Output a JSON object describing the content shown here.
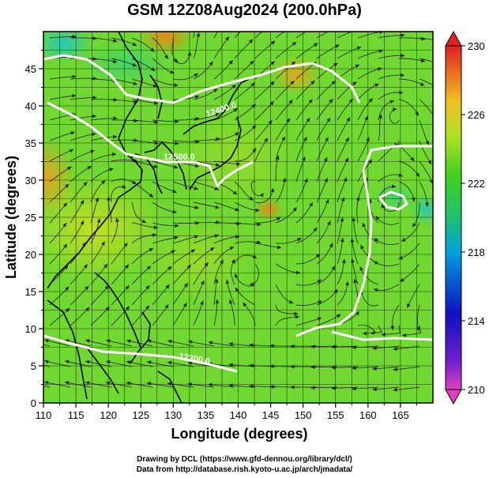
{
  "title": "GSM 12Z08Aug2024 (200.0hPa)",
  "credits": {
    "line1": "Drawing by DCL (https://www.gfd-dennou.org/library/dcl/)",
    "line2": "Data from http://database.rish.kyoto-u.ac.jp/arch/jmadata/"
  },
  "chart_data": {
    "type": "heatmap",
    "title": "GSM 12Z08Aug2024 (200.0hPa)",
    "xlabel": "Longitude (degrees)",
    "ylabel": "Latitude  (degrees)",
    "xlim": [
      110,
      170
    ],
    "ylim": [
      0,
      50
    ],
    "x_ticks": [
      110,
      115,
      120,
      125,
      130,
      135,
      140,
      145,
      150,
      155,
      160,
      165
    ],
    "y_ticks": [
      0,
      5,
      10,
      15,
      20,
      25,
      30,
      35,
      40,
      45
    ],
    "grid": true,
    "colorbar": {
      "range": [
        210,
        230
      ],
      "ticks": [
        230,
        226,
        222,
        218,
        214,
        210
      ],
      "colors": [
        "#e040c0",
        "#1010c0",
        "#00a0e0",
        "#20c060",
        "#40d020",
        "#e0d020",
        "#f08020",
        "#e02020"
      ]
    },
    "contours": [
      {
        "label": "12500.0",
        "value": 12500
      },
      {
        "label": "12400.0",
        "value": 12400
      },
      {
        "label": "12300.0",
        "value": 12300
      }
    ],
    "background": "streamlines over coastlines"
  }
}
